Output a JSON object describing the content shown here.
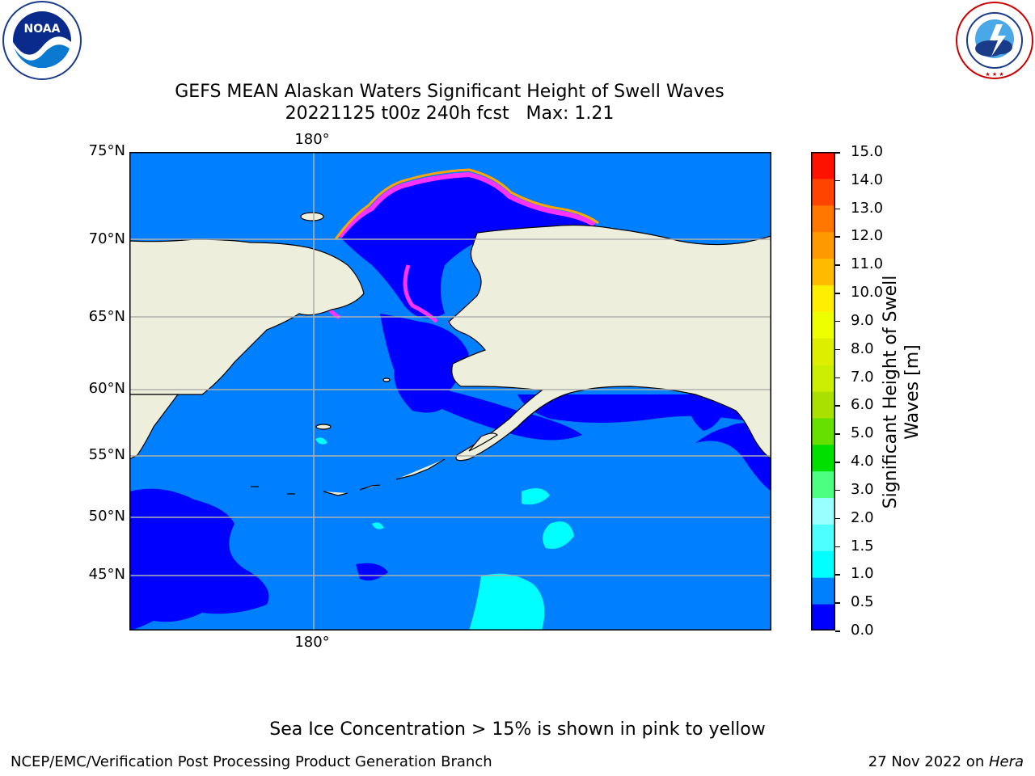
{
  "title": {
    "line1": "GEFS MEAN Alaskan Waters Significant Height of Swell Waves",
    "line2": "20221125 t00z 240h fcst   Max: 1.21"
  },
  "logos": {
    "noaa": {
      "text": "NOAA",
      "ring_text": "NATIONAL OCEANIC AND ATMOSPHERIC ADMINISTRATION · U.S. DEPARTMENT OF COMMERCE"
    },
    "nws": {
      "ring_text": "NATIONAL WEATHER SERVICE"
    }
  },
  "map": {
    "latitude_labels": [
      "75°N",
      "70°N",
      "65°N",
      "60°N",
      "55°N",
      "50°N",
      "45°N"
    ],
    "longitude_label_top": "180°",
    "longitude_label_bottom": "180°",
    "colors": {
      "land": "#eeeedd",
      "ocean_0_05": "#0000ff",
      "ocean_05_10": "#0080ff",
      "ocean_10_15": "#00ffff",
      "ice_pink": "#ff33ff",
      "ice_orange": "#ffa500",
      "ice_yellow": "#ffdd33",
      "gridline": "#b0b0b0",
      "coastline": "#000000"
    }
  },
  "colorbar": {
    "label": "Significant Height of Swell Waves [m]",
    "ticks": [
      "15.0",
      "14.0",
      "13.0",
      "12.0",
      "11.0",
      "10.0",
      "9.0",
      "8.0",
      "7.0",
      "6.0",
      "5.0",
      "4.0",
      "3.0",
      "2.0",
      "1.5",
      "1.0",
      "0.5",
      "0.0"
    ],
    "colors_bottom_to_top": [
      "#0000ff",
      "#0080ff",
      "#00ffff",
      "#4dffff",
      "#99ffff",
      "#4dff80",
      "#00e000",
      "#66e000",
      "#aae000",
      "#ccee00",
      "#ddee00",
      "#eeff00",
      "#ffee00",
      "#ffbb00",
      "#ff9900",
      "#ff7700",
      "#ff4400",
      "#ff1100"
    ]
  },
  "ice_note": "Sea Ice Concentration > 15% is shown in pink to yellow",
  "footer": {
    "left": "NCEP/EMC/Verification Post Processing Product Generation Branch",
    "right_prefix": "27 Nov 2022 on ",
    "right_machine": "Hera"
  }
}
